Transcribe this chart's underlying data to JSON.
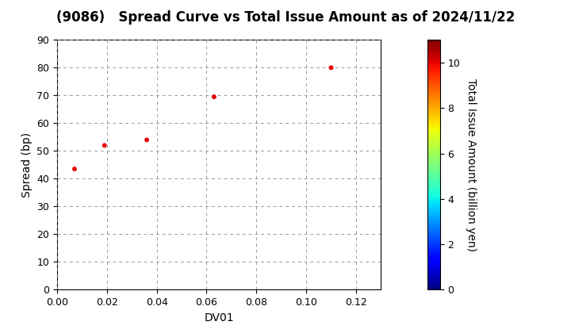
{
  "title": "(9086)   Spread Curve vs Total Issue Amount as of 2024/11/22",
  "xlabel": "DV01",
  "ylabel": "Spread (bp)",
  "colorbar_label": "Total Issue Amount (billion yen)",
  "x": [
    0.007,
    0.019,
    0.036,
    0.063,
    0.11
  ],
  "y": [
    43.5,
    52.0,
    54.0,
    69.5,
    80.0
  ],
  "color_values": [
    10.0,
    10.0,
    10.0,
    10.0,
    10.0
  ],
  "cmap": "jet",
  "clim": [
    0,
    11
  ],
  "xlim": [
    0.0,
    0.13
  ],
  "ylim": [
    0,
    90
  ],
  "xticks": [
    0.0,
    0.02,
    0.04,
    0.06,
    0.08,
    0.1,
    0.12
  ],
  "yticks": [
    0,
    10,
    20,
    30,
    40,
    50,
    60,
    70,
    80,
    90
  ],
  "colorbar_ticks": [
    0,
    2,
    4,
    6,
    8,
    10
  ],
  "marker_size": 18,
  "background_color": "#ffffff",
  "title_fontsize": 12,
  "axis_label_fontsize": 10,
  "tick_fontsize": 9
}
